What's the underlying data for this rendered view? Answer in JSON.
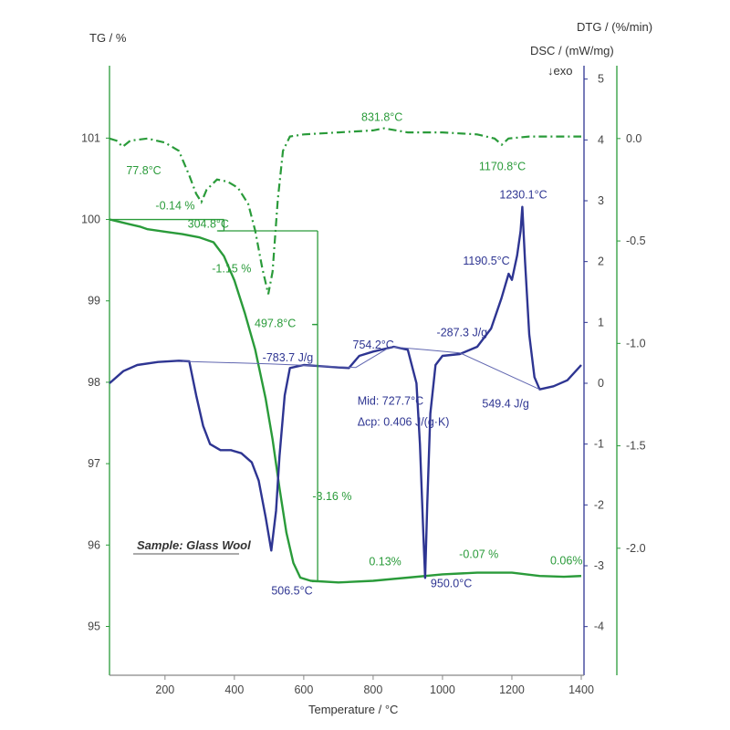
{
  "chart_data": {
    "type": "line",
    "title": "",
    "xlabel": "Temperature / °C",
    "xlim": [
      40,
      1400
    ],
    "x_ticks": [
      200,
      400,
      600,
      800,
      1000,
      1200,
      1400
    ],
    "axes": {
      "tg": {
        "label": "TG / %",
        "lim": [
          94.4,
          101.8
        ],
        "ticks": [
          95,
          96,
          97,
          98,
          99,
          100,
          101
        ]
      },
      "dsc": {
        "label": "DSC / (mW/mg)",
        "exo_label": "↓exo",
        "lim": [
          -4.8,
          5.1
        ],
        "ticks": [
          -4,
          -3,
          -2,
          -1,
          0,
          1,
          2,
          3,
          4,
          5
        ]
      },
      "dtg": {
        "label": "DTG / (%/min)",
        "lim": [
          -2.62,
          0.32
        ],
        "ticks": [
          -2.0,
          -1.5,
          -1.0,
          -0.5,
          0.0
        ]
      }
    },
    "colors": {
      "tg": "#2a9b3a",
      "dtg": "#2a9b3a",
      "dsc": "#2e3592",
      "baseline": "#6066b0"
    },
    "sample_label": "Sample: Glass Wool",
    "series": [
      {
        "key": "tg",
        "axis": "tg",
        "style": "solid",
        "points": [
          [
            40,
            100.0
          ],
          [
            100,
            99.94
          ],
          [
            130,
            99.91
          ],
          [
            150,
            99.88
          ],
          [
            200,
            99.85
          ],
          [
            250,
            99.82
          ],
          [
            300,
            99.78
          ],
          [
            340,
            99.72
          ],
          [
            370,
            99.55
          ],
          [
            400,
            99.25
          ],
          [
            430,
            98.85
          ],
          [
            460,
            98.4
          ],
          [
            490,
            97.8
          ],
          [
            510,
            97.3
          ],
          [
            530,
            96.7
          ],
          [
            550,
            96.15
          ],
          [
            570,
            95.78
          ],
          [
            590,
            95.6
          ],
          [
            620,
            95.56
          ],
          [
            700,
            95.54
          ],
          [
            800,
            95.56
          ],
          [
            900,
            95.6
          ],
          [
            1000,
            95.64
          ],
          [
            1100,
            95.66
          ],
          [
            1200,
            95.66
          ],
          [
            1280,
            95.62
          ],
          [
            1350,
            95.61
          ],
          [
            1400,
            95.62
          ]
        ]
      },
      {
        "key": "dtg",
        "axis": "dtg",
        "style": "dashdot",
        "points": [
          [
            40,
            0.0
          ],
          [
            60,
            -0.01
          ],
          [
            77.8,
            -0.04
          ],
          [
            100,
            -0.01
          ],
          [
            150,
            0.0
          ],
          [
            200,
            -0.02
          ],
          [
            240,
            -0.06
          ],
          [
            270,
            -0.18
          ],
          [
            290,
            -0.27
          ],
          [
            304.8,
            -0.31
          ],
          [
            320,
            -0.25
          ],
          [
            350,
            -0.2
          ],
          [
            380,
            -0.21
          ],
          [
            410,
            -0.24
          ],
          [
            440,
            -0.32
          ],
          [
            460,
            -0.45
          ],
          [
            480,
            -0.63
          ],
          [
            497.8,
            -0.76
          ],
          [
            510,
            -0.65
          ],
          [
            525,
            -0.3
          ],
          [
            540,
            -0.06
          ],
          [
            560,
            0.01
          ],
          [
            600,
            0.02
          ],
          [
            700,
            0.03
          ],
          [
            800,
            0.04
          ],
          [
            831.8,
            0.05
          ],
          [
            900,
            0.03
          ],
          [
            1000,
            0.03
          ],
          [
            1100,
            0.02
          ],
          [
            1150,
            0.0
          ],
          [
            1170.8,
            -0.03
          ],
          [
            1190,
            0.0
          ],
          [
            1250,
            0.01
          ],
          [
            1300,
            0.01
          ],
          [
            1400,
            0.01
          ]
        ]
      },
      {
        "key": "dsc",
        "axis": "dsc",
        "style": "solid",
        "points": [
          [
            40,
            0.0
          ],
          [
            80,
            0.2
          ],
          [
            120,
            0.3
          ],
          [
            180,
            0.35
          ],
          [
            240,
            0.37
          ],
          [
            270,
            0.36
          ],
          [
            290,
            -0.2
          ],
          [
            310,
            -0.7
          ],
          [
            330,
            -1.0
          ],
          [
            360,
            -1.1
          ],
          [
            390,
            -1.1
          ],
          [
            420,
            -1.15
          ],
          [
            450,
            -1.3
          ],
          [
            470,
            -1.6
          ],
          [
            490,
            -2.2
          ],
          [
            506.5,
            -2.75
          ],
          [
            520,
            -2.1
          ],
          [
            530,
            -1.2
          ],
          [
            545,
            -0.2
          ],
          [
            560,
            0.25
          ],
          [
            600,
            0.3
          ],
          [
            650,
            0.28
          ],
          [
            700,
            0.26
          ],
          [
            730,
            0.25
          ],
          [
            760,
            0.45
          ],
          [
            800,
            0.52
          ],
          [
            860,
            0.6
          ],
          [
            900,
            0.55
          ],
          [
            925,
            0.0
          ],
          [
            935,
            -1.0
          ],
          [
            945,
            -2.5
          ],
          [
            950,
            -3.2
          ],
          [
            956,
            -2.0
          ],
          [
            965,
            -0.5
          ],
          [
            980,
            0.3
          ],
          [
            1000,
            0.45
          ],
          [
            1050,
            0.48
          ],
          [
            1100,
            0.6
          ],
          [
            1140,
            0.9
          ],
          [
            1170,
            1.4
          ],
          [
            1190.5,
            1.8
          ],
          [
            1200,
            1.7
          ],
          [
            1215,
            2.1
          ],
          [
            1225,
            2.5
          ],
          [
            1230.1,
            2.9
          ],
          [
            1238,
            2.0
          ],
          [
            1250,
            0.8
          ],
          [
            1265,
            0.1
          ],
          [
            1280,
            -0.1
          ],
          [
            1320,
            -0.05
          ],
          [
            1360,
            0.05
          ],
          [
            1400,
            0.3
          ]
        ]
      },
      {
        "key": "dsc_baseline",
        "axis": "dsc",
        "style": "thin",
        "points": [
          [
            250,
            0.36
          ],
          [
            500,
            0.32
          ],
          [
            750,
            0.26
          ],
          [
            850,
            0.6
          ],
          [
            950,
            0.55
          ],
          [
            1050,
            0.5
          ],
          [
            1280,
            -0.1
          ]
        ]
      }
    ],
    "annotations": [
      {
        "text": "77.8°C",
        "x": 77.8,
        "axis": "dtg",
        "y": -0.04,
        "color": "green",
        "dx": 4,
        "dy": 30
      },
      {
        "text": "304.8°C",
        "x": 304.8,
        "axis": "dtg",
        "y": -0.31,
        "color": "green",
        "dx": -15,
        "dy": 28
      },
      {
        "text": "497.8°C",
        "x": 497.8,
        "axis": "dtg",
        "y": -0.76,
        "color": "green",
        "dx": -15,
        "dy": 36
      },
      {
        "text": "831.8°C",
        "x": 831.8,
        "axis": "dtg",
        "y": 0.05,
        "color": "green",
        "dx": -25,
        "dy": -8
      },
      {
        "text": "1170.8°C",
        "x": 1170.8,
        "axis": "dtg",
        "y": -0.03,
        "color": "green",
        "dx": -25,
        "dy": 28
      },
      {
        "text": "-0.14 %",
        "x": 120,
        "axis": "tg",
        "y": 100.08,
        "color": "green",
        "dx": 20,
        "dy": -4
      },
      {
        "text": "-1.15 %",
        "x": 330,
        "axis": "tg",
        "y": 99.35,
        "color": "green",
        "dx": 2,
        "dy": 0
      },
      {
        "text": "-3.16 %",
        "x": 625,
        "axis": "tg",
        "y": 96.55,
        "color": "green",
        "dx": 0,
        "dy": 0
      },
      {
        "text": "0.13%",
        "x": 880,
        "axis": "tg",
        "y": 95.75,
        "color": "green",
        "dx": -35,
        "dy": 0
      },
      {
        "text": "-0.07 %",
        "x": 1140,
        "axis": "tg",
        "y": 95.84,
        "color": "green",
        "dx": -35,
        "dy": 0
      },
      {
        "text": "0.06%",
        "x": 1350,
        "axis": "tg",
        "y": 95.76,
        "color": "green",
        "dx": -15,
        "dy": 0
      },
      {
        "text": "506.5°C",
        "x": 506.5,
        "axis": "dsc",
        "y": -2.75,
        "color": "blue",
        "dx": 0,
        "dy": 48
      },
      {
        "text": "950.0°C",
        "x": 950,
        "axis": "dsc",
        "y": -3.2,
        "color": "blue",
        "dx": 6,
        "dy": 10
      },
      {
        "text": "754.2°C",
        "x": 754.2,
        "axis": "dsc",
        "y": 0.45,
        "color": "blue",
        "dx": -5,
        "dy": -8
      },
      {
        "text": "1190.5°C",
        "x": 1190.5,
        "axis": "dsc",
        "y": 1.8,
        "color": "blue",
        "dx": -50,
        "dy": -10
      },
      {
        "text": "1230.1°C",
        "x": 1230.1,
        "axis": "dsc",
        "y": 2.9,
        "color": "blue",
        "dx": -25,
        "dy": -9
      },
      {
        "text": "-783.7 J/g",
        "x": 560,
        "axis": "dsc",
        "y": 0.3,
        "color": "blue",
        "dx": -30,
        "dy": -4
      },
      {
        "text": "-287.3 J/g",
        "x": 1020,
        "axis": "dsc",
        "y": 0.5,
        "color": "blue",
        "dx": -14,
        "dy": -18
      },
      {
        "text": "549.4 J/g",
        "x": 1230,
        "axis": "dsc",
        "y": -0.1,
        "color": "blue",
        "dx": -44,
        "dy": 20
      },
      {
        "text": "Mid: 727.7°C",
        "x": 760,
        "axis": "dsc",
        "y": -0.2,
        "color": "blue",
        "dx": -2,
        "dy": 10
      },
      {
        "text": "Δcp: 0.406 J/(g·K)",
        "x": 760,
        "axis": "dsc",
        "y": -0.55,
        "color": "blue",
        "dx": -2,
        "dy": 10
      }
    ],
    "steps": [
      {
        "from": 40,
        "to": 370,
        "top": 100.0,
        "bottom": 99.86
      },
      {
        "from": 350,
        "to": 640,
        "top": 99.86,
        "bottom": 98.71
      },
      {
        "from": 625,
        "to": 640,
        "top": 98.71,
        "bottom": 95.55
      }
    ]
  }
}
